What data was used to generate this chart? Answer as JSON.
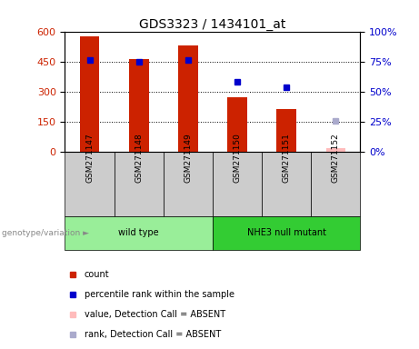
{
  "title": "GDS3323 / 1434101_at",
  "samples": [
    "GSM271147",
    "GSM271148",
    "GSM271149",
    "GSM271150",
    "GSM271151",
    "GSM271152"
  ],
  "counts": [
    575,
    460,
    530,
    270,
    215,
    20
  ],
  "counts_absent": [
    false,
    false,
    false,
    false,
    false,
    true
  ],
  "percentile_ranks": [
    76,
    75,
    76,
    58,
    54,
    26
  ],
  "ranks_absent": [
    false,
    false,
    false,
    false,
    false,
    true
  ],
  "bar_color_present": "#cc2200",
  "bar_color_absent": "#ffbbbb",
  "dot_color_present": "#0000cc",
  "dot_color_absent": "#aaaacc",
  "ylim_left": [
    0,
    600
  ],
  "ylim_right": [
    0,
    100
  ],
  "yticks_left": [
    0,
    150,
    300,
    450,
    600
  ],
  "yticks_right": [
    0,
    25,
    50,
    75,
    100
  ],
  "ytick_labels_right": [
    "0%",
    "25%",
    "50%",
    "75%",
    "100%"
  ],
  "groups": [
    {
      "label": "wild type",
      "indices": [
        0,
        1,
        2
      ],
      "color": "#99ee99"
    },
    {
      "label": "NHE3 null mutant",
      "indices": [
        3,
        4,
        5
      ],
      "color": "#33cc33"
    }
  ],
  "genotype_label": "genotype/variation",
  "legend_items": [
    {
      "label": "count",
      "color": "#cc2200"
    },
    {
      "label": "percentile rank within the sample",
      "color": "#0000cc"
    },
    {
      "label": "value, Detection Call = ABSENT",
      "color": "#ffbbbb"
    },
    {
      "label": "rank, Detection Call = ABSENT",
      "color": "#aaaacc"
    }
  ],
  "sample_box_color": "#cccccc",
  "bar_width": 0.4,
  "title_fontsize": 10,
  "tick_fontsize": 8,
  "label_fontsize": 7,
  "legend_fontsize": 7
}
